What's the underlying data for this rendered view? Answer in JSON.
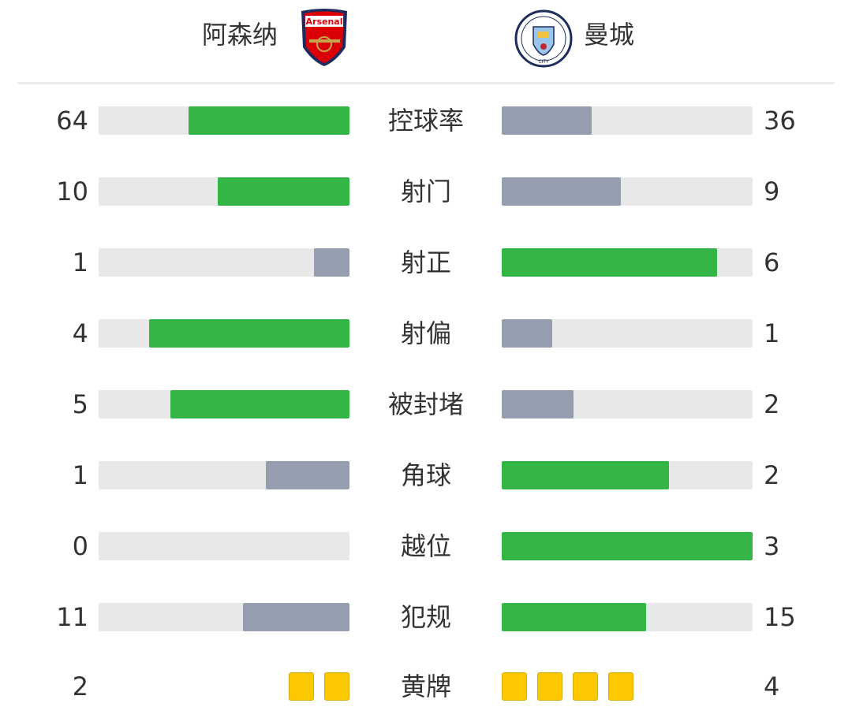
{
  "home": {
    "name": "阿森纳",
    "logo_text": "Arsenal"
  },
  "away": {
    "name": "曼城",
    "logo_text": "MANCHESTER CITY"
  },
  "colors": {
    "leader": "#33b647",
    "trailer": "#959eae",
    "track": "#e8e8e8",
    "card": "#fcc900"
  },
  "stats": [
    {
      "label": "控球率",
      "home": 64,
      "away": 36
    },
    {
      "label": "射门",
      "home": 10,
      "away": 9
    },
    {
      "label": "射正",
      "home": 1,
      "away": 6
    },
    {
      "label": "射偏",
      "home": 4,
      "away": 1
    },
    {
      "label": "被封堵",
      "home": 5,
      "away": 2
    },
    {
      "label": "角球",
      "home": 1,
      "away": 2
    },
    {
      "label": "越位",
      "home": 0,
      "away": 3
    },
    {
      "label": "犯规",
      "home": 11,
      "away": 15
    }
  ],
  "yellow_cards": {
    "label": "黄牌",
    "home": 2,
    "away": 4
  }
}
